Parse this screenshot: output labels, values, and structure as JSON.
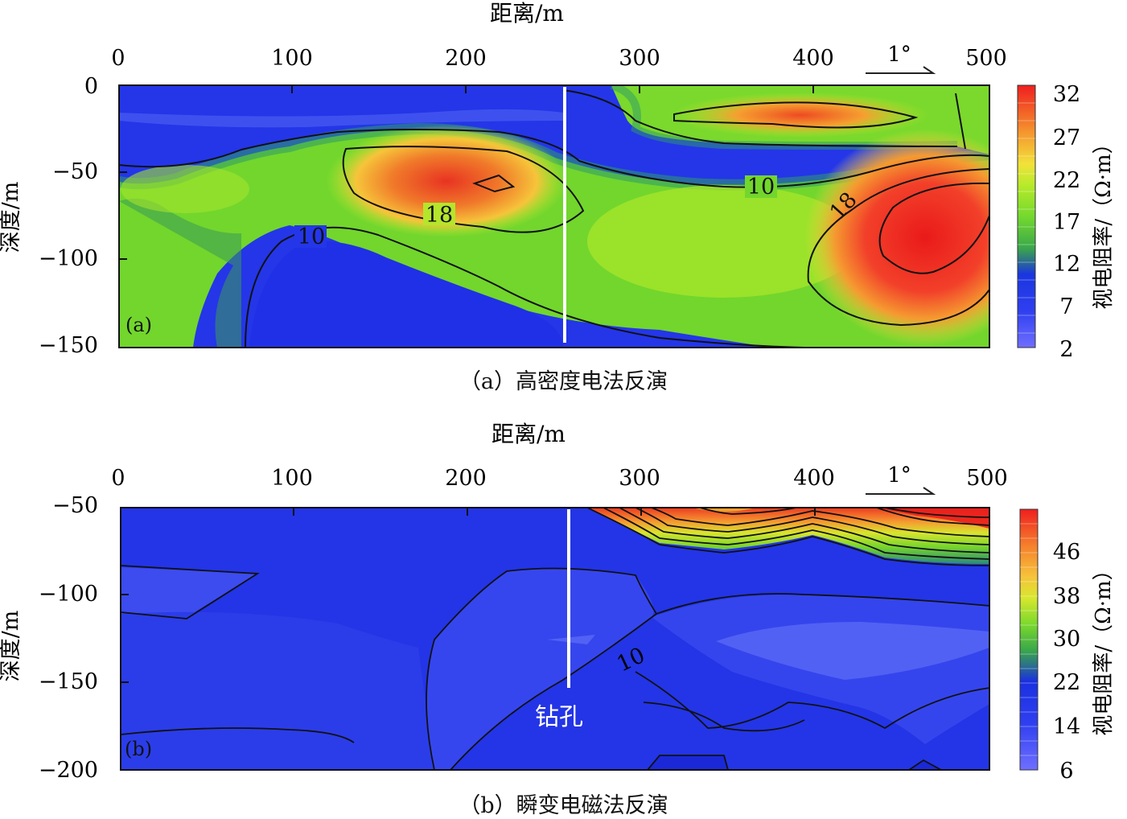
{
  "chart_data": [
    {
      "type": "heatmap",
      "panel_tag": "(a)",
      "caption": "（a）高密度电法反演",
      "xlabel": "距离/m",
      "ylabel": "深度/m",
      "colorbar_label": "视电阻率/（Ω·m）",
      "xlim": [
        0,
        500
      ],
      "ylim": [
        -150,
        0
      ],
      "x_ticks": [
        "0",
        "100",
        "200",
        "300",
        "400",
        "500"
      ],
      "y_ticks": [
        "0",
        "−50",
        "−100",
        "−150"
      ],
      "colorbar_ticks": [
        "32",
        "27",
        "22",
        "17",
        "12",
        "7",
        "2"
      ],
      "colorbar_range": [
        2,
        33
      ],
      "contour_labels": [
        "18",
        "10",
        "10",
        "18"
      ],
      "slope_annotation": "1°",
      "borehole_x": 256,
      "borehole_depth_range": [
        0,
        -150
      ]
    },
    {
      "type": "heatmap",
      "panel_tag": "(b)",
      "caption": "（b）瞬变电磁法反演",
      "xlabel": "距离/m",
      "ylabel": "深度/m",
      "colorbar_label": "视电阻率/（Ω·m）",
      "xlim": [
        0,
        500
      ],
      "ylim": [
        -200,
        -50
      ],
      "x_ticks": [
        "0",
        "100",
        "200",
        "300",
        "400",
        "500"
      ],
      "y_ticks": [
        "−50",
        "−100",
        "−150",
        "−200"
      ],
      "colorbar_ticks": [
        "46",
        "38",
        "30",
        "22",
        "14",
        "6"
      ],
      "colorbar_range": [
        6,
        52
      ],
      "contour_labels": [
        "10"
      ],
      "slope_annotation": "1°",
      "borehole_label": "钻孔",
      "borehole_x": 258,
      "borehole_depth_range": [
        -50,
        -155
      ]
    }
  ]
}
